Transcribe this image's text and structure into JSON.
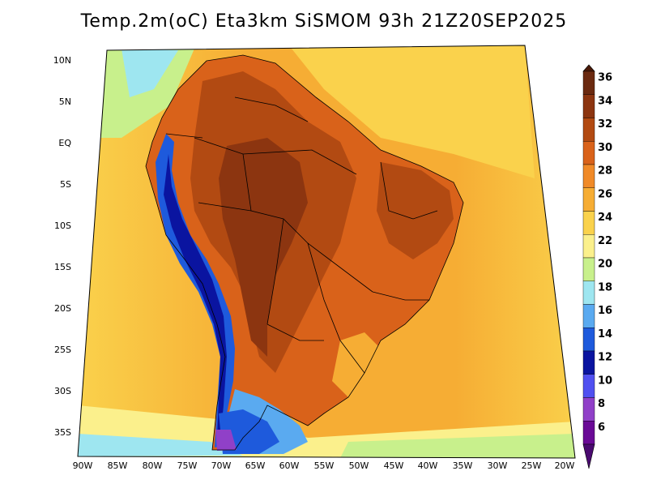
{
  "title": "Temp.2m(oC) Eta3km SiSMOM 93h 21Z20SEP2025",
  "lat_labels": [
    "10N",
    "5N",
    "EQ",
    "5S",
    "10S",
    "15S",
    "20S",
    "25S",
    "30S",
    "35S"
  ],
  "lon_labels": [
    "90W",
    "85W",
    "80W",
    "75W",
    "70W",
    "65W",
    "60W",
    "55W",
    "50W",
    "45W",
    "40W",
    "35W",
    "30W",
    "25W",
    "20W"
  ],
  "colorbar": {
    "labels": [
      "36",
      "34",
      "32",
      "30",
      "28",
      "26",
      "24",
      "22",
      "20",
      "18",
      "16",
      "14",
      "12",
      "10",
      "8",
      "6"
    ],
    "colors": [
      "#6b2a10",
      "#8c3510",
      "#b24a12",
      "#d9621a",
      "#f08a28",
      "#f6ad34",
      "#fad24c",
      "#fbf08c",
      "#c8f08c",
      "#9ee6f0",
      "#5aaaf0",
      "#1e5adc",
      "#0a14a0",
      "#5050f0",
      "#9040c8",
      "#6a0a96"
    ]
  },
  "map_colors": {
    "ocean_warm": "#f6ad34",
    "ocean_mid": "#fad24c",
    "ocean_cool": "#fbf08c",
    "land_hot": "#b24a12",
    "land_hottest": "#8c3510",
    "land_warm": "#d9621a",
    "andes": "#1e5adc"
  }
}
